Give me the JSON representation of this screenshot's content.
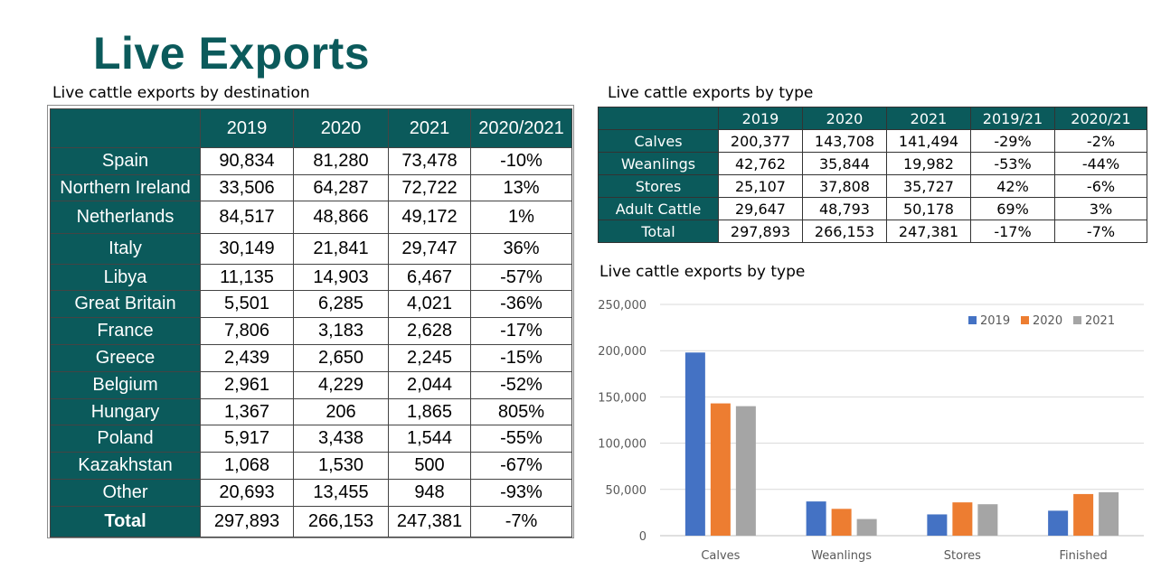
{
  "page": {
    "title": "Live Exports"
  },
  "destination": {
    "caption": "Live cattle exports by destination",
    "headers": [
      "",
      "2019",
      "2020",
      "2021",
      "2020/2021"
    ],
    "rows": [
      [
        "Spain",
        "90,834",
        "81,280",
        "73,478",
        "-10%"
      ],
      [
        "Northern Ireland",
        "33,506",
        "64,287",
        "72,722",
        "13%"
      ],
      [
        "Netherlands",
        "84,517",
        "48,866",
        "49,172",
        "1%"
      ],
      [
        "Italy",
        "30,149",
        "21,841",
        "29,747",
        "36%"
      ],
      [
        "Libya",
        "11,135",
        "14,903",
        "6,467",
        "-57%"
      ],
      [
        "Great Britain",
        "5,501",
        "6,285",
        "4,021",
        "-36%"
      ],
      [
        "France",
        "7,806",
        "3,183",
        "2,628",
        "-17%"
      ],
      [
        "Greece",
        "2,439",
        "2,650",
        "2,245",
        "-15%"
      ],
      [
        "Belgium",
        "2,961",
        "4,229",
        "2,044",
        "-52%"
      ],
      [
        "Hungary",
        "1,367",
        "206",
        "1,865",
        "805%"
      ],
      [
        "Poland",
        "5,917",
        "3,438",
        "1,544",
        "-55%"
      ],
      [
        "Kazakhstan",
        "1,068",
        "1,530",
        "500",
        "-67%"
      ],
      [
        "Other",
        "20,693",
        "13,455",
        "948",
        "-93%"
      ]
    ],
    "total": [
      "Total",
      "297,893",
      "266,153",
      "247,381",
      "-7%"
    ]
  },
  "by_type": {
    "caption": "Live cattle exports by type",
    "headers": [
      "",
      "2019",
      "2020",
      "2021",
      "2019/21",
      "2020/21"
    ],
    "rows": [
      [
        "Calves",
        "200,377",
        "143,708",
        "141,494",
        "-29%",
        "-2%"
      ],
      [
        "Weanlings",
        "42,762",
        "35,844",
        "19,982",
        "-53%",
        "-44%"
      ],
      [
        "Stores",
        "25,107",
        "37,808",
        "35,727",
        "42%",
        "-6%"
      ],
      [
        "Adult Cattle",
        "29,647",
        "48,793",
        "50,178",
        "69%",
        "3%"
      ],
      [
        "Total",
        "297,893",
        "266,153",
        "247,381",
        "-17%",
        "-7%"
      ]
    ]
  },
  "chart_caption": "Live cattle exports by type",
  "chart_data": {
    "type": "bar",
    "title": "Live cattle exports by type",
    "categories": [
      "Calves",
      "Weanlings",
      "Stores",
      "Finished"
    ],
    "series": [
      {
        "name": "2019",
        "color": "#4472c4",
        "values": [
          198000,
          37000,
          23000,
          27000
        ]
      },
      {
        "name": "2020",
        "color": "#ed7d31",
        "values": [
          143000,
          29000,
          36000,
          45000
        ]
      },
      {
        "name": "2021",
        "color": "#a5a5a5",
        "values": [
          140000,
          18000,
          34000,
          47000
        ]
      }
    ],
    "ylim": [
      0,
      250000
    ],
    "yticks": [
      0,
      50000,
      100000,
      150000,
      200000,
      250000
    ],
    "ytick_labels": [
      "0",
      "50,000",
      "100,000",
      "150,000",
      "200,000",
      "250,000"
    ],
    "grid": true,
    "legend": "top-right",
    "xlabel": "",
    "ylabel": ""
  }
}
